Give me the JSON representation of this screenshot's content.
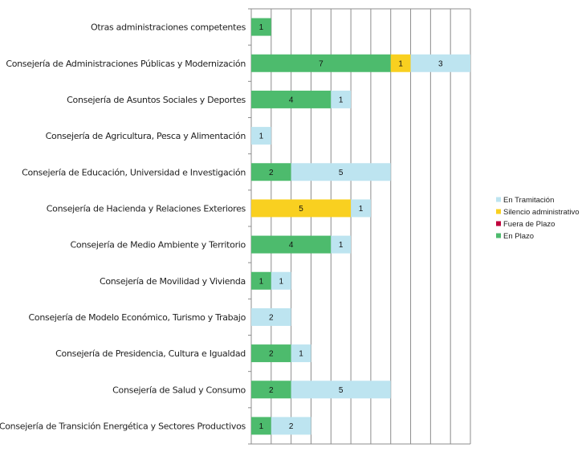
{
  "chart_data": {
    "type": "bar",
    "orientation": "horizontal",
    "stacked": true,
    "title": "",
    "xlabel": "",
    "ylabel": "",
    "xlim": [
      0,
      11
    ],
    "grid": true,
    "legend_position": "right",
    "categories": [
      "Otras administraciones competentes",
      "Consejería de Administraciones Públicas y Modernización",
      "Consejería de Asuntos Sociales y Deportes",
      "Consejería de Agricultura, Pesca y Alimentación",
      "Consejería de Educación, Universidad e Investigación",
      "Consejería de Hacienda y Relaciones Exteriores",
      "Consejería de Medio Ambiente y Territorio",
      "Consejería de Movilidad y Vivienda",
      "Consejería de Modelo Económico, Turismo y Trabajo",
      "Consejería de Presidencia, Cultura e Igualdad",
      "Consejería de Salud y Consumo",
      "Consejería de Transición Energética y Sectores Productivos"
    ],
    "series": [
      {
        "name": "En Plazo",
        "color": "#4dbb6d",
        "values": [
          1,
          7,
          4,
          0,
          2,
          0,
          4,
          1,
          0,
          2,
          2,
          1
        ]
      },
      {
        "name": "Fuera de Plazo",
        "color": "#c0003c",
        "values": [
          0,
          0,
          0,
          0,
          0,
          0,
          0,
          0,
          0,
          0,
          0,
          0
        ]
      },
      {
        "name": "Silencio administrativo",
        "color": "#f9d020",
        "values": [
          0,
          1,
          0,
          0,
          0,
          5,
          0,
          0,
          0,
          0,
          0,
          0
        ]
      },
      {
        "name": "En Tramitación",
        "color": "#bde4f0",
        "values": [
          0,
          3,
          1,
          1,
          5,
          1,
          1,
          1,
          2,
          1,
          5,
          2
        ]
      }
    ],
    "legend_order": [
      "En Tramitación",
      "Silencio administrativo",
      "Fuera de Plazo",
      "En Plazo"
    ]
  }
}
